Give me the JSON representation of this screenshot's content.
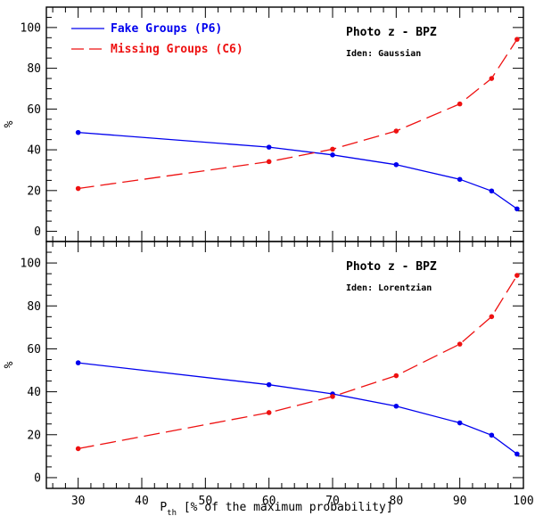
{
  "chart_data": [
    {
      "type": "line",
      "panel": "top",
      "annotation_title": "Photo z - BPZ",
      "annotation_sub": "Iden: Gaussian",
      "ylabel": "%",
      "xlim": [
        25,
        100
      ],
      "ylim": [
        -5,
        110
      ],
      "yticks": [
        0,
        20,
        40,
        60,
        80,
        100
      ],
      "legend": {
        "placement": "top-left",
        "entries": [
          {
            "label": "Fake Groups (P6)",
            "series": 0
          },
          {
            "label": "Missing Groups (C6)",
            "series": 1
          }
        ]
      },
      "series": [
        {
          "name": "Fake Groups (P6)",
          "color": "#0000ee",
          "style": "solid",
          "x": [
            30,
            60,
            70,
            80,
            90,
            95,
            99
          ],
          "values": [
            48.5,
            41.3,
            37.5,
            32.7,
            25.5,
            19.8,
            11.0
          ]
        },
        {
          "name": "Missing Groups (C6)",
          "color": "#ee1111",
          "style": "dashed",
          "x": [
            30,
            60,
            70,
            80,
            90,
            95,
            99
          ],
          "values": [
            21.0,
            34.2,
            40.3,
            49.2,
            62.5,
            75.0,
            94.2
          ]
        }
      ]
    },
    {
      "type": "line",
      "panel": "bottom",
      "annotation_title": "Photo z - BPZ",
      "annotation_sub": "Iden: Lorentzian",
      "ylabel": "%",
      "xlabel_main": "P",
      "xlabel_sub": "th",
      "xlabel_rest": " [% of the maximum probability]",
      "xlim": [
        25,
        100
      ],
      "ylim": [
        -5,
        110
      ],
      "xticks": [
        30,
        40,
        50,
        60,
        70,
        80,
        90,
        100
      ],
      "yticks": [
        0,
        20,
        40,
        60,
        80,
        100
      ],
      "series": [
        {
          "name": "Fake Groups (P6)",
          "color": "#0000ee",
          "style": "solid",
          "x": [
            30,
            60,
            70,
            80,
            90,
            95,
            99
          ],
          "values": [
            53.5,
            43.3,
            39.0,
            33.3,
            25.5,
            19.8,
            11.0
          ]
        },
        {
          "name": "Missing Groups (C6)",
          "color": "#ee1111",
          "style": "dashed",
          "x": [
            30,
            60,
            70,
            80,
            90,
            95,
            99
          ],
          "values": [
            13.5,
            30.3,
            37.8,
            47.5,
            62.2,
            75.0,
            94.2
          ]
        }
      ]
    }
  ]
}
